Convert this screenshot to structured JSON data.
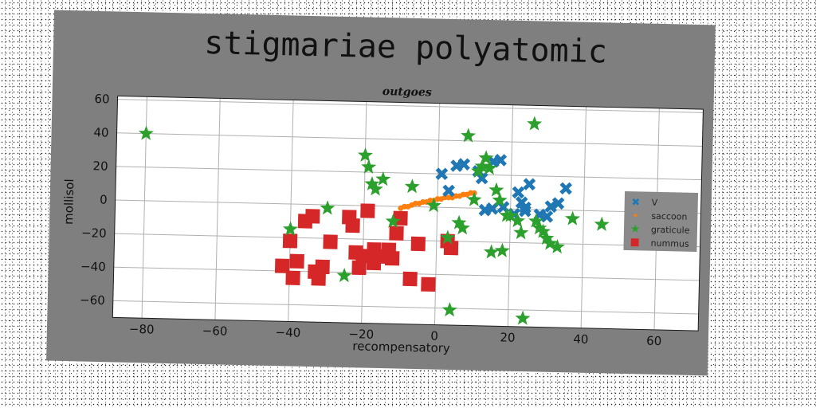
{
  "chart_data": {
    "type": "scatter",
    "title": "stigmariae polyatomic",
    "subtitle": "outgoes",
    "xlabel": "recompensatory",
    "ylabel": "mollisol",
    "xlim": [
      -88,
      72
    ],
    "ylim": [
      -70,
      62
    ],
    "xticks": [
      -80,
      -60,
      -40,
      -20,
      0,
      20,
      40,
      60
    ],
    "yticks": [
      -60,
      -40,
      -20,
      0,
      20,
      40,
      60
    ],
    "grid": true,
    "legend_position": "center-right",
    "series": [
      {
        "name": "V",
        "color": "#1f77b4",
        "marker": "x",
        "points": [
          [
            1,
            20
          ],
          [
            3,
            10
          ],
          [
            5,
            25
          ],
          [
            7,
            26
          ],
          [
            11,
            22
          ],
          [
            12,
            18
          ],
          [
            15,
            28
          ],
          [
            17,
            29
          ],
          [
            13,
            -1
          ],
          [
            15,
            0
          ],
          [
            18,
            1
          ],
          [
            21,
            -3
          ],
          [
            22,
            10
          ],
          [
            23,
            4
          ],
          [
            24,
            1
          ],
          [
            25,
            15
          ],
          [
            28,
            -3
          ],
          [
            30,
            -4
          ],
          [
            31,
            2
          ],
          [
            33,
            4
          ],
          [
            35,
            13
          ],
          [
            24,
            -1
          ]
        ]
      },
      {
        "name": "saccoon",
        "color": "#ff7f0e",
        "marker": "o",
        "points": [
          [
            -10,
            -1
          ],
          [
            -9,
            0
          ],
          [
            -8,
            0
          ],
          [
            -7,
            1
          ],
          [
            -6,
            2
          ],
          [
            -5,
            2
          ],
          [
            -4,
            3
          ],
          [
            -3,
            3
          ],
          [
            -2,
            4
          ],
          [
            -1,
            4
          ],
          [
            0,
            5
          ],
          [
            1,
            5
          ],
          [
            2,
            6
          ],
          [
            3,
            6
          ],
          [
            4,
            6
          ],
          [
            5,
            7
          ],
          [
            6,
            7
          ],
          [
            7,
            8
          ],
          [
            8,
            8
          ],
          [
            9,
            9
          ],
          [
            10,
            9
          ]
        ]
      },
      {
        "name": "graticule",
        "color": "#2ca02c",
        "marker": "star",
        "points": [
          [
            -80,
            40
          ],
          [
            -40,
            -15
          ],
          [
            -30,
            -2
          ],
          [
            -25,
            -42
          ],
          [
            -20,
            30
          ],
          [
            -19,
            23
          ],
          [
            -18,
            13
          ],
          [
            -17,
            10
          ],
          [
            -15,
            16
          ],
          [
            -12,
            -9
          ],
          [
            -7,
            12
          ],
          [
            -1,
            1
          ],
          [
            3,
            -18
          ],
          [
            4,
            -61
          ],
          [
            6,
            -9
          ],
          [
            7,
            -12
          ],
          [
            8,
            43
          ],
          [
            10,
            5
          ],
          [
            11,
            22
          ],
          [
            12,
            25
          ],
          [
            13,
            30
          ],
          [
            14,
            24
          ],
          [
            15,
            -26
          ],
          [
            16,
            11
          ],
          [
            17,
            5
          ],
          [
            18,
            -25
          ],
          [
            19,
            -4
          ],
          [
            20,
            -4
          ],
          [
            22,
            -7
          ],
          [
            23,
            -14
          ],
          [
            24,
            -65
          ],
          [
            26,
            51
          ],
          [
            27,
            -7
          ],
          [
            28,
            -11
          ],
          [
            29,
            -13
          ],
          [
            30,
            -17
          ],
          [
            31,
            -20
          ],
          [
            33,
            -22
          ],
          [
            37,
            -5
          ],
          [
            45,
            -8
          ]
        ]
      },
      {
        "name": "nummus",
        "color": "#d62728",
        "marker": "square",
        "points": [
          [
            -42,
            -37
          ],
          [
            -40,
            -22
          ],
          [
            -39,
            -44
          ],
          [
            -38,
            -34
          ],
          [
            -36,
            -10
          ],
          [
            -34,
            -7
          ],
          [
            -33,
            -40
          ],
          [
            -32,
            -44
          ],
          [
            -31,
            -37
          ],
          [
            -29,
            -22
          ],
          [
            -24,
            -7
          ],
          [
            -23,
            -12
          ],
          [
            -22,
            -28
          ],
          [
            -21,
            -37
          ],
          [
            -20,
            -30
          ],
          [
            -19,
            -3
          ],
          [
            -17,
            -34
          ],
          [
            -15,
            -30
          ],
          [
            -13,
            -26
          ],
          [
            -12,
            -31
          ],
          [
            -11,
            -16
          ],
          [
            -10,
            -7
          ],
          [
            -7,
            -43
          ],
          [
            -5,
            -22
          ],
          [
            -2,
            -46
          ],
          [
            4,
            -24
          ],
          [
            3,
            -20
          ],
          [
            -17,
            -26
          ]
        ]
      }
    ]
  }
}
